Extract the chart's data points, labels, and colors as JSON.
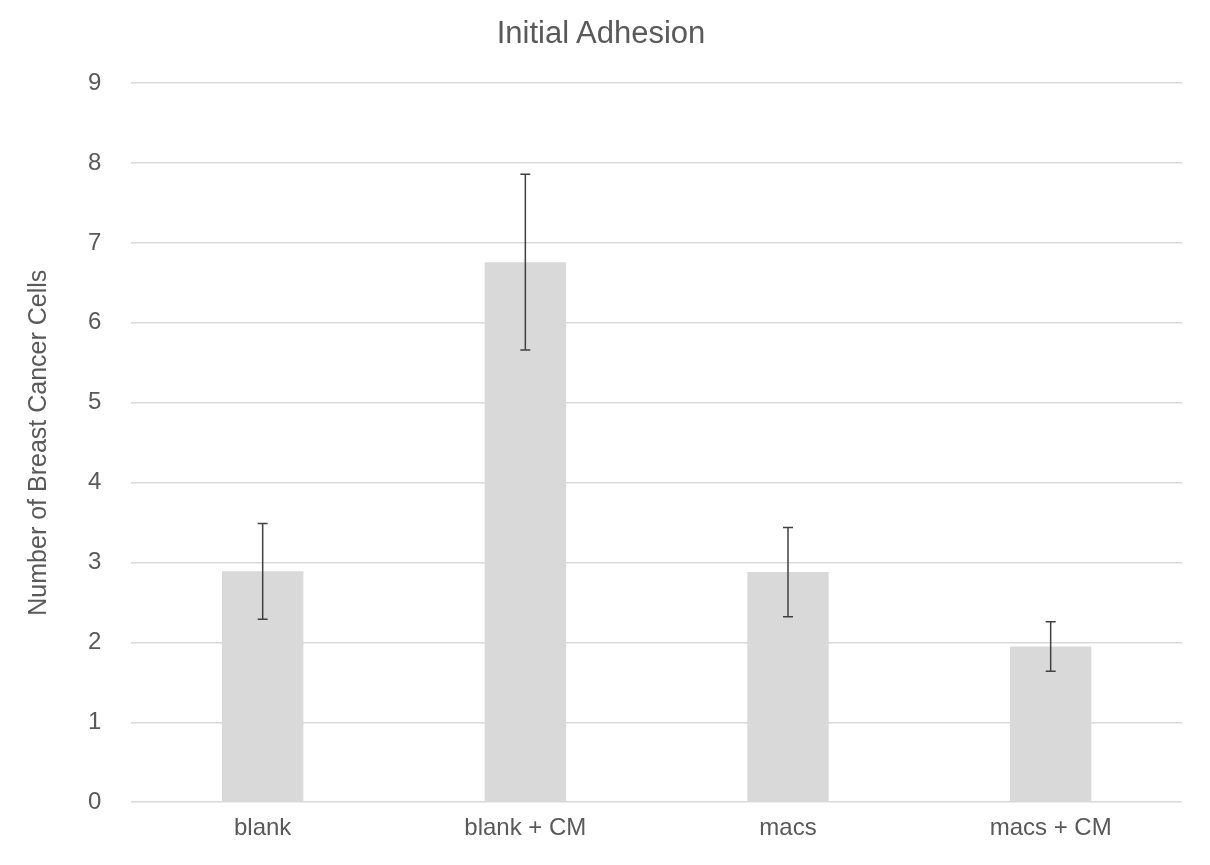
{
  "chart_data": {
    "type": "bar",
    "title": "Initial Adhesion",
    "ylabel": "Number of Breast Cancer Cells",
    "categories": [
      "blank",
      "blank + CM",
      "macs",
      "macs + CM"
    ],
    "values": [
      2.89,
      6.76,
      2.88,
      1.95
    ],
    "errors": [
      0.6,
      1.1,
      0.56,
      0.31
    ],
    "color": "#d9d9d9",
    "ylim": [
      0,
      9
    ],
    "yticks": [
      0,
      1,
      2,
      3,
      4,
      5,
      6,
      7,
      8,
      9
    ],
    "grid": "y",
    "legend": false
  }
}
